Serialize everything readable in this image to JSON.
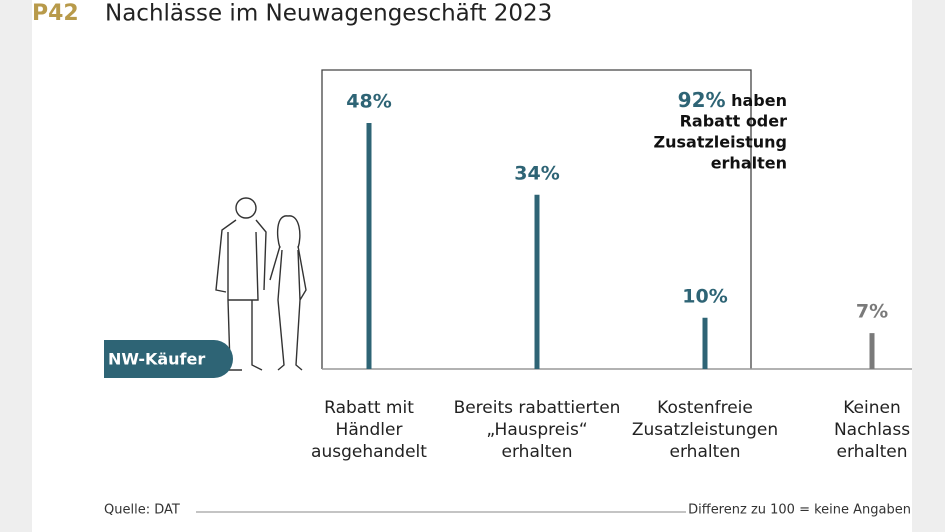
{
  "chart_data": {
    "type": "bar",
    "code": "P42",
    "title": "Nachlässe im Neuwagengeschäft 2023",
    "categories": [
      [
        "Rabatt mit",
        "Händler",
        "ausgehandelt"
      ],
      [
        "Bereits rabattierten",
        "„Hauspreis“",
        "erhalten"
      ],
      [
        "Kostenfreie",
        "Zusatzleistungen",
        "erhalten"
      ],
      [
        "Keinen",
        "Nachlass",
        "erhalten"
      ]
    ],
    "values": [
      48,
      34,
      10,
      7
    ],
    "value_labels": [
      "48%",
      "34%",
      "10%",
      "7%"
    ],
    "colors": [
      "#2e6475",
      "#2e6475",
      "#2e6475",
      "#7a7a7a"
    ],
    "annotation": {
      "label": "92%",
      "lines": [
        "haben",
        "Rabatt oder",
        "Zusatzleistung",
        "erhalten"
      ]
    },
    "badge": "NW-Käufer",
    "source": "Quelle: DAT",
    "note": "Differenz zu 100 = keine Angaben"
  }
}
